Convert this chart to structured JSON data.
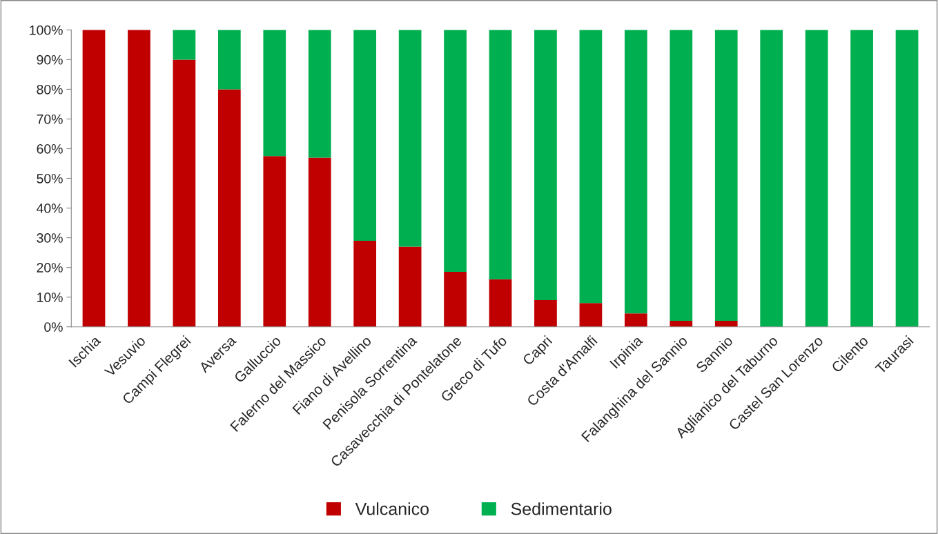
{
  "chart_data": {
    "type": "bar",
    "stacked": true,
    "categories": [
      "Ischia",
      "Vesuvio",
      "Campi Flegrei",
      "Aversa",
      "Galluccio",
      "Falerno del Massico",
      "Fiano di Avellino",
      "Penisola Sorrentina",
      "Casavecchia di Pontelatone",
      "Greco di Tufo",
      "Capri",
      "Costa d'Amalfi",
      "Irpinia",
      "Falanghina del Sannio",
      "Sannio",
      "Aglianico del Taburno",
      "Castel San Lorenzo",
      "Cilento",
      "Taurasi"
    ],
    "series": [
      {
        "name": "Vulcanico",
        "color": "#c00000",
        "values": [
          100,
          100,
          90,
          80,
          57.5,
          57,
          29,
          27,
          18.5,
          16,
          9,
          8,
          4.5,
          2,
          2,
          0,
          0,
          0,
          0
        ]
      },
      {
        "name": "Sedimentario",
        "color": "#00b050",
        "values": [
          0,
          0,
          10,
          20,
          42.5,
          43,
          71,
          73,
          81.5,
          84,
          91,
          92,
          95.5,
          98,
          98,
          100,
          100,
          100,
          100
        ]
      }
    ],
    "ylim": [
      0,
      100
    ],
    "yticks": [
      {
        "value": 0,
        "label": "0%"
      },
      {
        "value": 10,
        "label": "10%"
      },
      {
        "value": 20,
        "label": "20%"
      },
      {
        "value": 30,
        "label": "30%"
      },
      {
        "value": 40,
        "label": "40%"
      },
      {
        "value": 50,
        "label": "50%"
      },
      {
        "value": 60,
        "label": "60%"
      },
      {
        "value": 70,
        "label": "70%"
      },
      {
        "value": 80,
        "label": "80%"
      },
      {
        "value": 90,
        "label": "90%"
      },
      {
        "value": 100,
        "label": "100%"
      }
    ],
    "grid": false,
    "legend": "bottom"
  }
}
